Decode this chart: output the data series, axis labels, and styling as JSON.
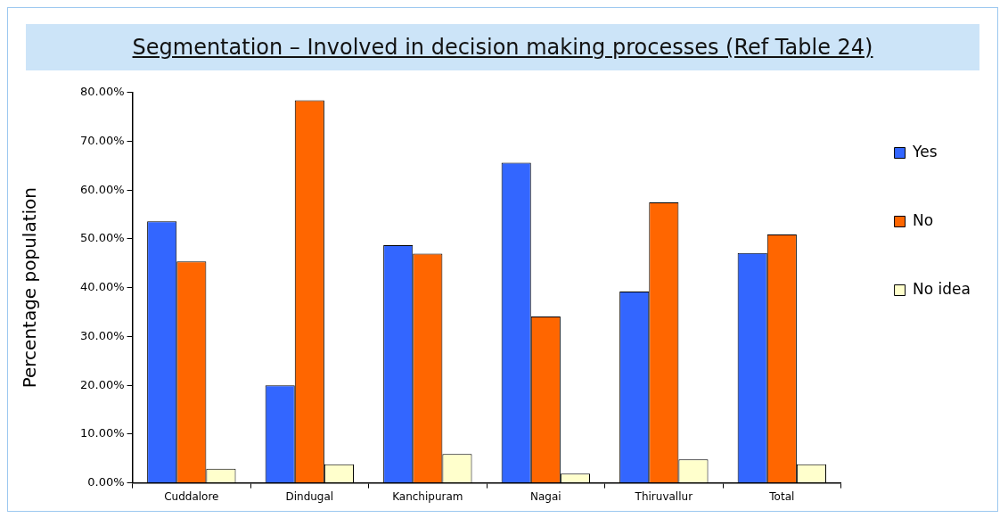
{
  "chart_data": {
    "type": "bar",
    "title": "Segmentation – Involved in decision making processes (Ref Table 24)",
    "ylabel": "Percentage population",
    "categories": [
      "Cuddalore",
      "Dindugal",
      "Kanchipuram",
      "Nagai",
      "Thiruvallur",
      "Total"
    ],
    "series": [
      {
        "name": "Yes",
        "color": "#3366ff",
        "values": [
          53.6,
          20.0,
          48.7,
          65.6,
          39.2,
          47.1
        ]
      },
      {
        "name": "No",
        "color": "#ff6600",
        "values": [
          45.4,
          78.4,
          47.0,
          34.1,
          57.5,
          50.9
        ]
      },
      {
        "name": "No idea",
        "color": "#ffffcc",
        "values": [
          2.9,
          3.8,
          5.9,
          1.9,
          4.8,
          3.8
        ]
      }
    ],
    "ylim": [
      0,
      80
    ],
    "yticks": [
      {
        "value": 0,
        "label": "0.00%"
      },
      {
        "value": 10,
        "label": "10.00%"
      },
      {
        "value": 20,
        "label": "20.00%"
      },
      {
        "value": 30,
        "label": "30.00%"
      },
      {
        "value": 40,
        "label": "40.00%"
      },
      {
        "value": 50,
        "label": "50.00%"
      },
      {
        "value": 60,
        "label": "60.00%"
      },
      {
        "value": 70,
        "label": "70.00%"
      },
      {
        "value": 80,
        "label": "80.00%"
      }
    ],
    "grid": false,
    "legend": "right"
  }
}
